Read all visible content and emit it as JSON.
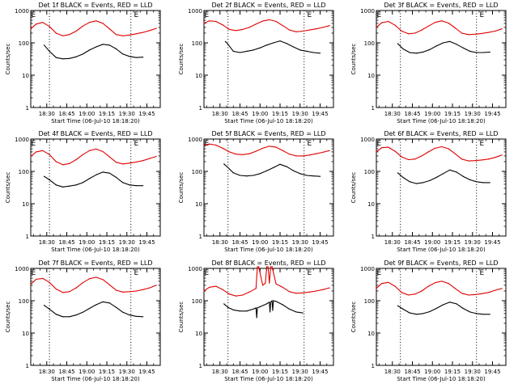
{
  "colors": {
    "events": "#000000",
    "lld": "#e00000",
    "axis": "#000000",
    "marker": "#000000"
  },
  "chart_data": [
    {
      "type": "line",
      "title": "Det 1f BLACK = Events, RED = LLD",
      "xlabel": "Start Time (06-Jul-10 18:18:20)",
      "ylabel": "Counts/sec",
      "yscale": "log",
      "ylim": [
        1,
        1000
      ],
      "xticks": [
        "18:30",
        "18:45",
        "19:00",
        "19:15",
        "19:30",
        "19:45"
      ],
      "xtick_minutes": [
        30,
        45,
        60,
        75,
        90,
        105
      ],
      "xlim": [
        18,
        115
      ],
      "flag_labels": [
        "E",
        "E"
      ],
      "flag_minutes": [
        20,
        97
      ],
      "event_markers": [
        32,
        93
      ],
      "grid": false,
      "series": [
        {
          "color": "red",
          "x": [
            18,
            22,
            27,
            32,
            37,
            42,
            47,
            52,
            57,
            62,
            67,
            72,
            77,
            82,
            87,
            92,
            97,
            102,
            107,
            112
          ],
          "y": [
            270,
            380,
            430,
            320,
            200,
            165,
            180,
            230,
            330,
            430,
            480,
            400,
            270,
            180,
            165,
            175,
            190,
            210,
            240,
            280
          ]
        },
        {
          "color": "black",
          "x": [
            28,
            32,
            37,
            42,
            47,
            52,
            57,
            62,
            67,
            72,
            77,
            82,
            87,
            92,
            97,
            102
          ],
          "y": [
            85,
            55,
            35,
            32,
            33,
            37,
            45,
            60,
            75,
            90,
            85,
            65,
            45,
            38,
            35,
            36
          ]
        }
      ]
    },
    {
      "type": "line",
      "title": "Det 2f BLACK = Events, RED = LLD",
      "xlabel": "Start Time (06-Jul-10 18:18:20)",
      "ylabel": "Counts/sec",
      "yscale": "log",
      "ylim": [
        1,
        1000
      ],
      "xticks": [
        "18:30",
        "18:45",
        "19:00",
        "19:15",
        "19:30",
        "19:45"
      ],
      "xtick_minutes": [
        30,
        45,
        60,
        75,
        90,
        105
      ],
      "xlim": [
        18,
        115
      ],
      "flag_labels": [
        "E",
        "E"
      ],
      "flag_minutes": [
        20,
        97
      ],
      "event_markers": [
        36,
        93
      ],
      "grid": false,
      "series": [
        {
          "color": "red",
          "x": [
            18,
            22,
            27,
            32,
            37,
            42,
            47,
            52,
            57,
            62,
            67,
            72,
            77,
            82,
            87,
            92,
            97,
            102,
            107,
            112
          ],
          "y": [
            400,
            480,
            460,
            360,
            260,
            240,
            260,
            300,
            380,
            470,
            520,
            460,
            340,
            250,
            220,
            230,
            250,
            270,
            300,
            340
          ]
        },
        {
          "color": "black",
          "x": [
            34,
            36,
            40,
            45,
            50,
            55,
            60,
            65,
            70,
            75,
            80,
            85,
            90,
            95,
            100,
            105
          ],
          "y": [
            110,
            90,
            55,
            50,
            55,
            60,
            70,
            85,
            100,
            115,
            95,
            75,
            60,
            55,
            50,
            48
          ]
        }
      ]
    },
    {
      "type": "line",
      "title": "Det 3f BLACK = Events, RED = LLD",
      "xlabel": "Start Time (06-Jul-10 18:18:20)",
      "ylabel": "Counts/sec",
      "yscale": "log",
      "ylim": [
        1,
        1000
      ],
      "xticks": [
        "18:30",
        "18:45",
        "19:00",
        "19:15",
        "19:30",
        "19:45"
      ],
      "xtick_minutes": [
        30,
        45,
        60,
        75,
        90,
        105
      ],
      "xlim": [
        18,
        115
      ],
      "flag_labels": [
        "E",
        "E"
      ],
      "flag_minutes": [
        20,
        97
      ],
      "event_markers": [
        36,
        93
      ],
      "grid": false,
      "series": [
        {
          "color": "red",
          "x": [
            18,
            22,
            27,
            32,
            37,
            42,
            47,
            52,
            57,
            62,
            67,
            72,
            77,
            82,
            87,
            92,
            97,
            102,
            107,
            112
          ],
          "y": [
            300,
            420,
            460,
            350,
            230,
            190,
            200,
            250,
            330,
            430,
            480,
            410,
            290,
            200,
            180,
            185,
            195,
            210,
            230,
            270
          ]
        },
        {
          "color": "black",
          "x": [
            34,
            38,
            43,
            48,
            53,
            58,
            63,
            68,
            73,
            78,
            83,
            88,
            93,
            98,
            103
          ],
          "y": [
            95,
            65,
            50,
            48,
            52,
            62,
            80,
            100,
            110,
            90,
            70,
            55,
            50,
            50,
            52
          ]
        }
      ]
    },
    {
      "type": "line",
      "title": "Det 4f BLACK = Events, RED = LLD",
      "xlabel": "Start Time (06-Jul-10 18:18:20)",
      "ylabel": "Counts/sec",
      "yscale": "log",
      "ylim": [
        1,
        1000
      ],
      "xticks": [
        "18:30",
        "18:45",
        "19:00",
        "19:15",
        "19:30",
        "19:45"
      ],
      "xtick_minutes": [
        30,
        45,
        60,
        75,
        90,
        105
      ],
      "xlim": [
        18,
        115
      ],
      "flag_labels": [
        "E",
        "E"
      ],
      "flag_minutes": [
        20,
        97
      ],
      "event_markers": [
        32,
        93
      ],
      "grid": false,
      "series": [
        {
          "color": "red",
          "x": [
            18,
            22,
            27,
            32,
            37,
            42,
            47,
            52,
            57,
            62,
            67,
            72,
            77,
            82,
            87,
            92,
            97,
            102,
            107,
            112
          ],
          "y": [
            290,
            400,
            440,
            330,
            200,
            160,
            175,
            230,
            330,
            440,
            490,
            410,
            280,
            190,
            170,
            180,
            195,
            215,
            250,
            290
          ]
        },
        {
          "color": "black",
          "x": [
            28,
            32,
            37,
            42,
            47,
            52,
            57,
            62,
            67,
            72,
            77,
            82,
            87,
            92,
            97,
            102
          ],
          "y": [
            70,
            55,
            38,
            33,
            35,
            38,
            45,
            60,
            78,
            95,
            88,
            65,
            45,
            38,
            36,
            36
          ]
        }
      ]
    },
    {
      "type": "line",
      "title": "Det 5f BLACK = Events, RED = LLD",
      "xlabel": "Start Time (06-Jul-10 18:18:20)",
      "ylabel": "Counts/sec",
      "yscale": "log",
      "ylim": [
        1,
        1000
      ],
      "xticks": [
        "18:30",
        "18:45",
        "19:00",
        "19:15",
        "19:30",
        "19:45"
      ],
      "xtick_minutes": [
        30,
        45,
        60,
        75,
        90,
        105
      ],
      "xlim": [
        18,
        115
      ],
      "flag_labels": [
        "E",
        "E"
      ],
      "flag_minutes": [
        20,
        97
      ],
      "event_markers": [
        36,
        93
      ],
      "grid": false,
      "series": [
        {
          "color": "red",
          "x": [
            18,
            22,
            27,
            32,
            37,
            42,
            47,
            52,
            57,
            62,
            67,
            72,
            77,
            82,
            87,
            92,
            97,
            102,
            107,
            112
          ],
          "y": [
            640,
            700,
            650,
            520,
            400,
            340,
            330,
            350,
            420,
            520,
            600,
            560,
            440,
            340,
            300,
            300,
            320,
            350,
            390,
            440
          ]
        },
        {
          "color": "black",
          "x": [
            33,
            36,
            40,
            45,
            50,
            55,
            60,
            65,
            70,
            75,
            80,
            85,
            90,
            95,
            100,
            105
          ],
          "y": [
            170,
            130,
            90,
            75,
            72,
            75,
            85,
            105,
            130,
            165,
            140,
            105,
            85,
            75,
            72,
            70
          ]
        }
      ]
    },
    {
      "type": "line",
      "title": "Det 6f BLACK = Events, RED = LLD",
      "xlabel": "Start Time (06-Jul-10 18:18:20)",
      "ylabel": "Counts/sec",
      "yscale": "log",
      "ylim": [
        1,
        1000
      ],
      "xticks": [
        "18:30",
        "18:45",
        "19:00",
        "19:15",
        "19:30",
        "19:45"
      ],
      "xtick_minutes": [
        30,
        45,
        60,
        75,
        90,
        105
      ],
      "xlim": [
        18,
        115
      ],
      "flag_labels": [
        "E",
        "E"
      ],
      "flag_minutes": [
        20,
        97
      ],
      "event_markers": [
        36,
        93
      ],
      "grid": false,
      "series": [
        {
          "color": "red",
          "x": [
            18,
            22,
            27,
            32,
            37,
            42,
            47,
            52,
            57,
            62,
            67,
            72,
            77,
            82,
            87,
            92,
            97,
            102,
            107,
            112
          ],
          "y": [
            400,
            540,
            560,
            420,
            280,
            230,
            240,
            300,
            400,
            520,
            580,
            500,
            350,
            240,
            210,
            215,
            225,
            240,
            270,
            320
          ]
        },
        {
          "color": "black",
          "x": [
            34,
            38,
            43,
            48,
            53,
            58,
            63,
            68,
            73,
            78,
            83,
            88,
            93,
            98,
            103
          ],
          "y": [
            90,
            65,
            48,
            42,
            45,
            52,
            65,
            85,
            110,
            95,
            70,
            55,
            48,
            45,
            45
          ]
        }
      ]
    },
    {
      "type": "line",
      "title": "Det 7f BLACK = Events, RED = LLD",
      "xlabel": "Start Time (06-Jul-10 18:18:20)",
      "ylabel": "Counts/sec",
      "yscale": "log",
      "ylim": [
        1,
        1000
      ],
      "xticks": [
        "18:30",
        "18:45",
        "19:00",
        "19:15",
        "19:30",
        "19:45"
      ],
      "xtick_minutes": [
        30,
        45,
        60,
        75,
        90,
        105
      ],
      "xlim": [
        18,
        115
      ],
      "flag_labels": [
        "E",
        "E"
      ],
      "flag_minutes": [
        20,
        97
      ],
      "event_markers": [
        32,
        93
      ],
      "grid": false,
      "series": [
        {
          "color": "red",
          "x": [
            18,
            22,
            27,
            32,
            37,
            42,
            47,
            52,
            57,
            62,
            67,
            72,
            77,
            82,
            87,
            92,
            97,
            102,
            107,
            112
          ],
          "y": [
            320,
            460,
            490,
            370,
            230,
            180,
            190,
            250,
            360,
            480,
            530,
            450,
            310,
            210,
            185,
            190,
            200,
            220,
            250,
            300
          ]
        },
        {
          "color": "black",
          "x": [
            28,
            32,
            37,
            42,
            47,
            52,
            57,
            62,
            67,
            72,
            77,
            82,
            87,
            92,
            97,
            102
          ],
          "y": [
            72,
            55,
            38,
            32,
            32,
            36,
            44,
            58,
            75,
            92,
            85,
            62,
            44,
            36,
            33,
            32
          ]
        }
      ]
    },
    {
      "type": "line",
      "title": "Det 8f BLACK = Events, RED = LLD",
      "xlabel": "Start Time (06-Jul-10 18:18:20)",
      "ylabel": "Counts/sec",
      "yscale": "log",
      "ylim": [
        1,
        1000
      ],
      "xticks": [
        "18:30",
        "18:45",
        "19:00",
        "19:15",
        "19:30",
        "19:45"
      ],
      "xtick_minutes": [
        30,
        45,
        60,
        75,
        90,
        105
      ],
      "xlim": [
        18,
        115
      ],
      "flag_labels": [
        "E",
        "E"
      ],
      "flag_minutes": [
        20,
        97
      ],
      "event_markers": [
        36,
        93
      ],
      "grid": false,
      "series": [
        {
          "color": "red",
          "x": [
            18,
            22,
            27,
            32,
            37,
            42,
            47,
            52,
            57,
            58,
            59,
            62,
            64,
            65,
            66,
            67,
            68,
            69,
            72,
            77,
            82,
            87,
            92,
            97,
            102,
            107,
            112
          ],
          "y": [
            200,
            260,
            280,
            220,
            160,
            140,
            150,
            185,
            240,
            1200,
            1200,
            300,
            350,
            1200,
            1200,
            350,
            1200,
            1200,
            330,
            260,
            190,
            170,
            175,
            185,
            200,
            220,
            250
          ]
        },
        {
          "color": "black",
          "x": [
            33,
            36,
            40,
            45,
            50,
            55,
            57,
            57.5,
            58,
            60,
            65,
            67,
            67.5,
            68,
            69,
            69.5,
            70,
            72,
            77,
            82,
            87,
            92
          ],
          "y": [
            80,
            62,
            52,
            48,
            48,
            55,
            60,
            30,
            60,
            65,
            80,
            90,
            45,
            90,
            100,
            50,
            100,
            95,
            75,
            55,
            45,
            42
          ]
        }
      ]
    },
    {
      "type": "line",
      "title": "Det 9f BLACK = Events, RED = LLD",
      "xlabel": "Start Time (06-Jul-10 18:18:20)",
      "ylabel": "Counts/sec",
      "yscale": "log",
      "ylim": [
        1,
        1000
      ],
      "xticks": [
        "18:30",
        "18:45",
        "19:00",
        "19:15",
        "19:30",
        "19:45"
      ],
      "xtick_minutes": [
        30,
        45,
        60,
        75,
        90,
        105
      ],
      "xlim": [
        18,
        115
      ],
      "flag_labels": [
        "E",
        "E"
      ],
      "flag_minutes": [
        20,
        97
      ],
      "event_markers": [
        36,
        93
      ],
      "grid": false,
      "series": [
        {
          "color": "red",
          "x": [
            18,
            22,
            27,
            32,
            37,
            42,
            47,
            52,
            57,
            62,
            67,
            72,
            77,
            82,
            87,
            92,
            97,
            102,
            107,
            112
          ],
          "y": [
            240,
            340,
            370,
            280,
            180,
            150,
            160,
            200,
            280,
            360,
            400,
            340,
            240,
            170,
            150,
            155,
            165,
            180,
            210,
            240
          ]
        },
        {
          "color": "black",
          "x": [
            34,
            38,
            43,
            48,
            53,
            58,
            63,
            68,
            73,
            78,
            83,
            88,
            93,
            98,
            103
          ],
          "y": [
            70,
            55,
            42,
            38,
            40,
            46,
            58,
            75,
            90,
            80,
            58,
            45,
            40,
            38,
            38
          ]
        }
      ]
    }
  ]
}
